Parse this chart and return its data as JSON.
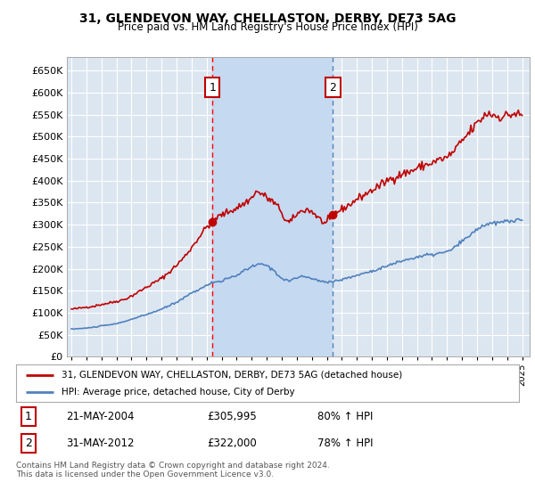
{
  "title": "31, GLENDEVON WAY, CHELLASTON, DERBY, DE73 5AG",
  "subtitle": "Price paid vs. HM Land Registry's House Price Index (HPI)",
  "legend_label_red": "31, GLENDEVON WAY, CHELLASTON, DERBY, DE73 5AG (detached house)",
  "legend_label_blue": "HPI: Average price, detached house, City of Derby",
  "transaction1_date": "21-MAY-2004",
  "transaction1_price": "£305,995",
  "transaction1_hpi": "80% ↑ HPI",
  "transaction2_date": "31-MAY-2012",
  "transaction2_price": "£322,000",
  "transaction2_hpi": "78% ↑ HPI",
  "footnote": "Contains HM Land Registry data © Crown copyright and database right 2024.\nThis data is licensed under the Open Government Licence v3.0.",
  "fig_bg_color": "#ffffff",
  "plot_bg_color": "#dce6f1",
  "shade_color": "#c5d9f1",
  "grid_color": "#ffffff",
  "red_color": "#c00000",
  "blue_color": "#4f81bd",
  "vline1_color": "#ff0000",
  "vline2_color": "#4f81bd",
  "ylim": [
    0,
    680000
  ],
  "yticks": [
    0,
    50000,
    100000,
    150000,
    200000,
    250000,
    300000,
    350000,
    400000,
    450000,
    500000,
    550000,
    600000,
    650000
  ],
  "xmin": 1994.7,
  "xmax": 2025.5,
  "transaction1_x": 2004.38,
  "transaction1_y": 305995,
  "transaction2_x": 2012.41,
  "transaction2_y": 322000
}
